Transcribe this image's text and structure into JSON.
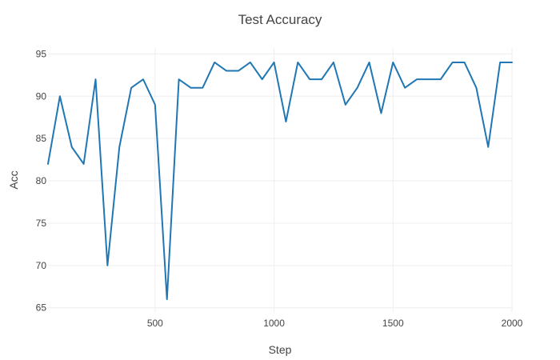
{
  "chart_data": {
    "type": "line",
    "title": "Test Accuracy",
    "xlabel": "Step",
    "ylabel": "Acc",
    "xlim": [
      50,
      2000
    ],
    "ylim": [
      64.5,
      95.7
    ],
    "x_ticks": [
      500,
      1000,
      1500,
      2000
    ],
    "y_ticks": [
      65,
      70,
      75,
      80,
      85,
      90,
      95
    ],
    "grid": true,
    "series": [
      {
        "name": "",
        "color": "#1f77b4",
        "x": [
          50,
          100,
          150,
          200,
          250,
          300,
          350,
          400,
          450,
          500,
          550,
          600,
          650,
          700,
          750,
          800,
          850,
          900,
          950,
          1000,
          1050,
          1100,
          1150,
          1200,
          1250,
          1300,
          1350,
          1400,
          1450,
          1500,
          1550,
          1600,
          1650,
          1700,
          1750,
          1800,
          1850,
          1900,
          1950,
          2000
        ],
        "y": [
          82,
          90,
          84,
          82,
          92,
          70,
          84,
          91,
          92,
          89,
          66,
          92,
          91,
          91,
          94,
          93,
          93,
          94,
          92,
          94,
          87,
          94,
          92,
          92,
          94,
          89,
          91,
          94,
          88,
          94,
          91,
          92,
          92,
          92,
          94,
          94,
          91,
          84,
          94,
          94
        ]
      }
    ]
  }
}
